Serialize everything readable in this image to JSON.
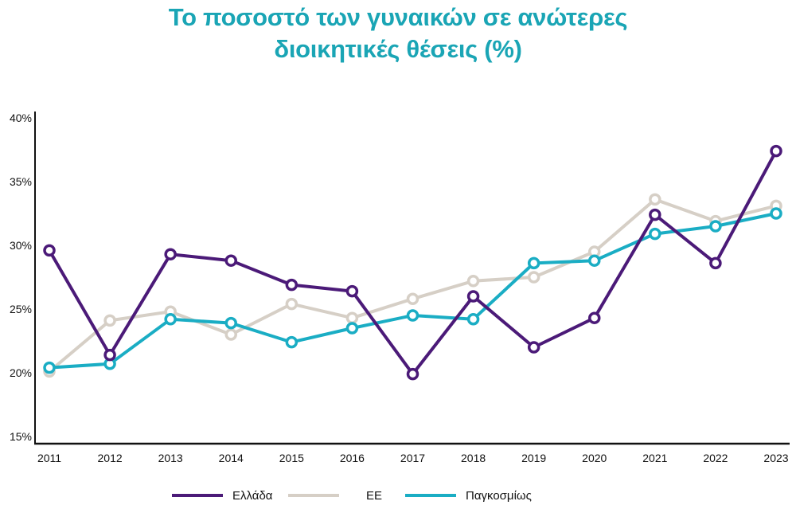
{
  "title": {
    "line1": "Το ποσοστό των γυναικών σε ανώτερες",
    "line2": "διοικητικές θέσεις (%)"
  },
  "colors": {
    "title": "#1aa5b5",
    "greece": "#4b1a78",
    "eu": "#d6cfc6",
    "global": "#1aadc4",
    "axis": "#111111"
  },
  "legend": {
    "items": [
      {
        "label": "Ελλάδα",
        "color": "#4b1a78"
      },
      {
        "label": "ΕΕ",
        "color": "#d6cfc6"
      },
      {
        "label": "Παγκοσμίως",
        "color": "#1aadc4"
      }
    ]
  },
  "chart_data": {
    "type": "line",
    "title": "Το ποσοστό των γυναικών σε ανώτερες διοικητικές θέσεις (%)",
    "xlabel": "",
    "ylabel": "",
    "categories": [
      "2011",
      "2012",
      "2013",
      "2014",
      "2015",
      "2016",
      "2017",
      "2018",
      "2019",
      "2020",
      "2021",
      "2022",
      "2023"
    ],
    "yticks": [
      "15%",
      "20%",
      "25%",
      "30%",
      "35%",
      "40%"
    ],
    "ylim": [
      15,
      40
    ],
    "grid": false,
    "legend_position": "bottom",
    "markers": "hollow-circle",
    "series": [
      {
        "name": "Ελλάδα",
        "color": "#4b1a78",
        "values": [
          29.6,
          21.4,
          29.3,
          28.8,
          26.9,
          26.4,
          19.9,
          26.0,
          22.0,
          24.3,
          32.4,
          28.6,
          37.4
        ]
      },
      {
        "name": "ΕΕ",
        "color": "#d6cfc6",
        "values": [
          20.1,
          24.1,
          24.8,
          23.0,
          25.4,
          24.3,
          25.8,
          27.2,
          27.5,
          29.5,
          33.6,
          31.9,
          33.1
        ]
      },
      {
        "name": "Παγκοσμίως",
        "color": "#1aadc4",
        "values": [
          20.4,
          20.7,
          24.2,
          23.9,
          22.4,
          23.5,
          24.5,
          24.2,
          28.6,
          28.8,
          30.9,
          31.5,
          32.5
        ]
      }
    ]
  }
}
